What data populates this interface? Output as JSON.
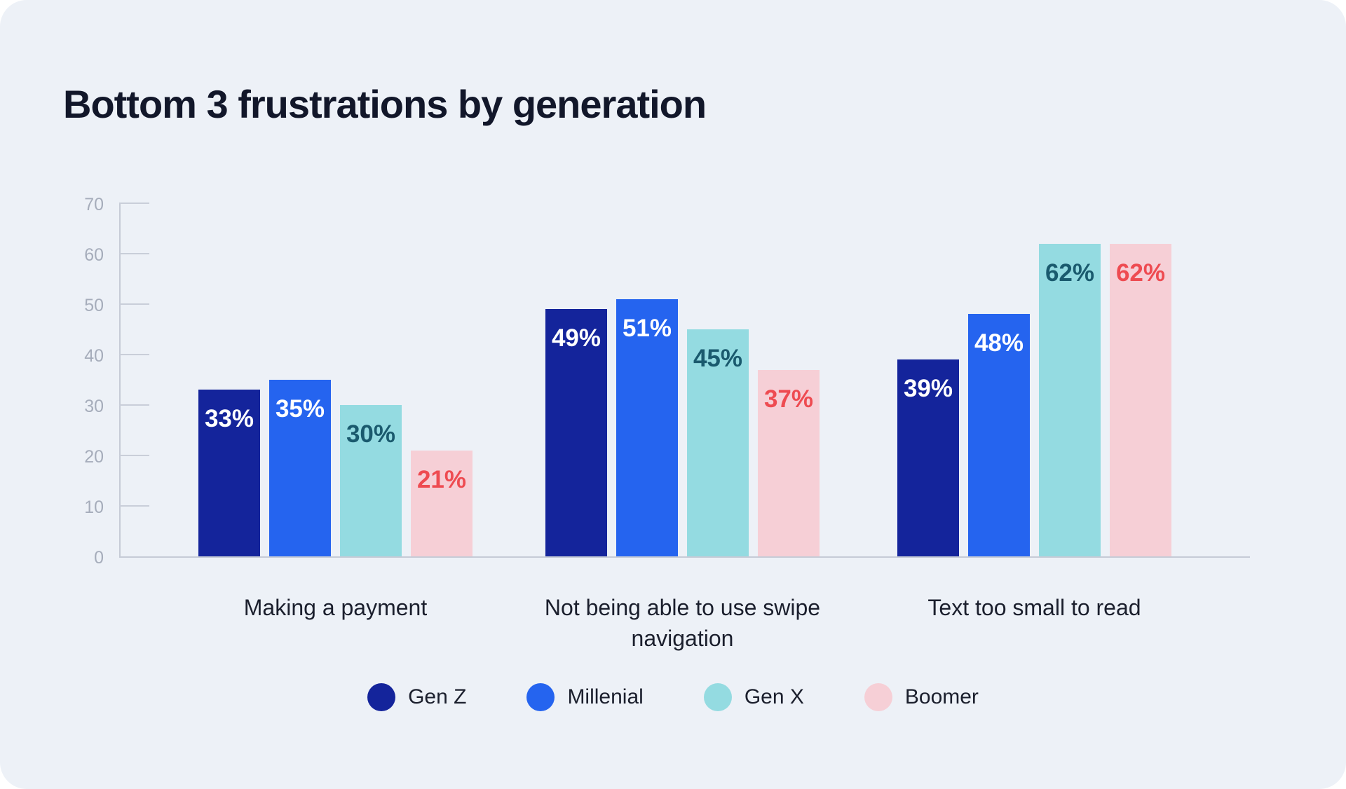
{
  "title": "Bottom 3 frustrations by generation",
  "colors": {
    "page_background": "#ffffff",
    "card_background": "#edf1f7",
    "title_text": "#12172a",
    "axis_text": "#a6adbb",
    "axis_line": "#c6cbd6",
    "category_text": "#1b1f2d",
    "legend_text": "#1b1f2d"
  },
  "chart_data": {
    "type": "bar",
    "title": "Bottom 3 frustrations by generation",
    "categories": [
      "Making a payment",
      "Not being able to use swipe navigation",
      "Text too small to read"
    ],
    "series": [
      {
        "name": "Gen Z",
        "color": "#14249b",
        "label_color": "#ffffff",
        "values": [
          33,
          49,
          39
        ]
      },
      {
        "name": "Millenial",
        "color": "#2564ef",
        "label_color": "#ffffff",
        "values": [
          35,
          51,
          48
        ]
      },
      {
        "name": "Gen X",
        "color": "#94dbe1",
        "label_color": "#1a5a6e",
        "values": [
          30,
          45,
          62
        ]
      },
      {
        "name": "Boomer",
        "color": "#f6cfd6",
        "label_color": "#ee4b51",
        "values": [
          21,
          37,
          62
        ]
      }
    ],
    "value_suffix": "%",
    "xlabel": "",
    "ylabel": "",
    "y_axis": {
      "min": 0,
      "max": 70,
      "ticks": [
        0,
        10,
        20,
        30,
        40,
        50,
        60,
        70
      ]
    },
    "grid": "left-tick-stubs-only",
    "legend_position": "bottom"
  }
}
